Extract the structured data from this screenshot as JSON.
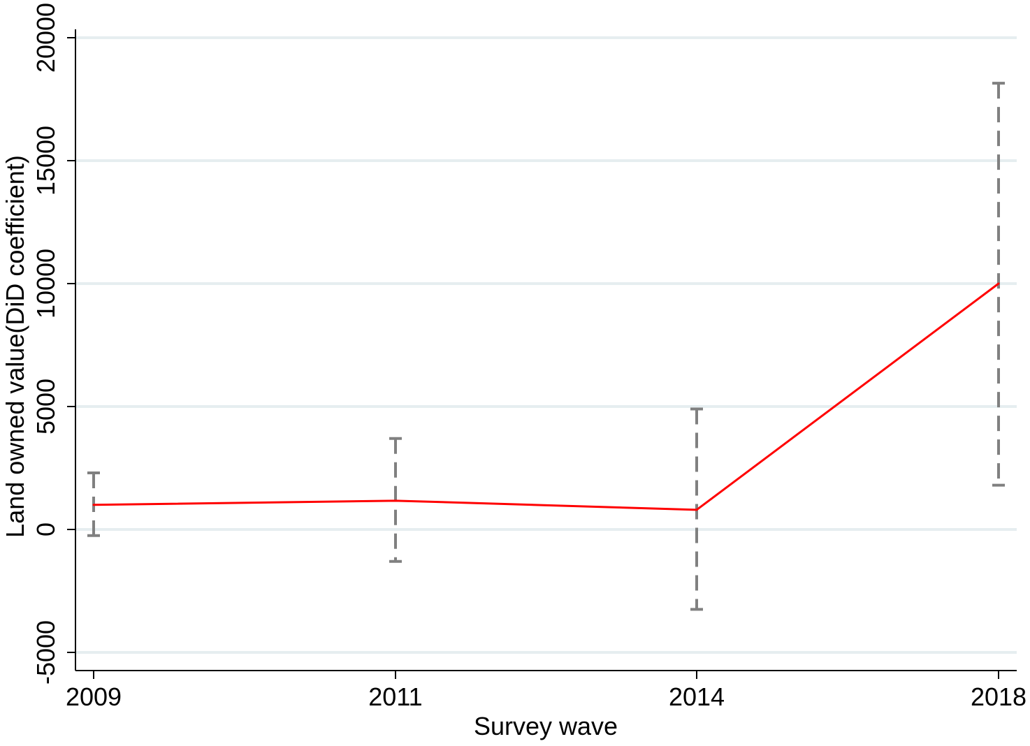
{
  "chart_data": {
    "type": "line",
    "xlabel": "Survey wave",
    "ylabel": "Land owned value(DiD coefficient)",
    "categories": [
      "2009",
      "2011",
      "2014",
      "2018"
    ],
    "series": [
      {
        "values": [
          1000,
          1170,
          800,
          10000
        ],
        "ci_low": [
          -250,
          -1300,
          -3250,
          1800
        ],
        "ci_high": [
          2300,
          3700,
          4900,
          18150
        ]
      }
    ],
    "ylim": [
      -5000,
      20000
    ],
    "yticks": [
      -5000,
      0,
      5000,
      10000,
      15000,
      20000
    ],
    "ytick_labels": [
      "-5000",
      "0",
      "5000",
      "10000",
      "15000",
      "20000"
    ],
    "grid": true,
    "colors": {
      "line": "#ff0000",
      "error_bar": "#808080",
      "grid": "#e6eef0",
      "axis": "#000000"
    }
  }
}
